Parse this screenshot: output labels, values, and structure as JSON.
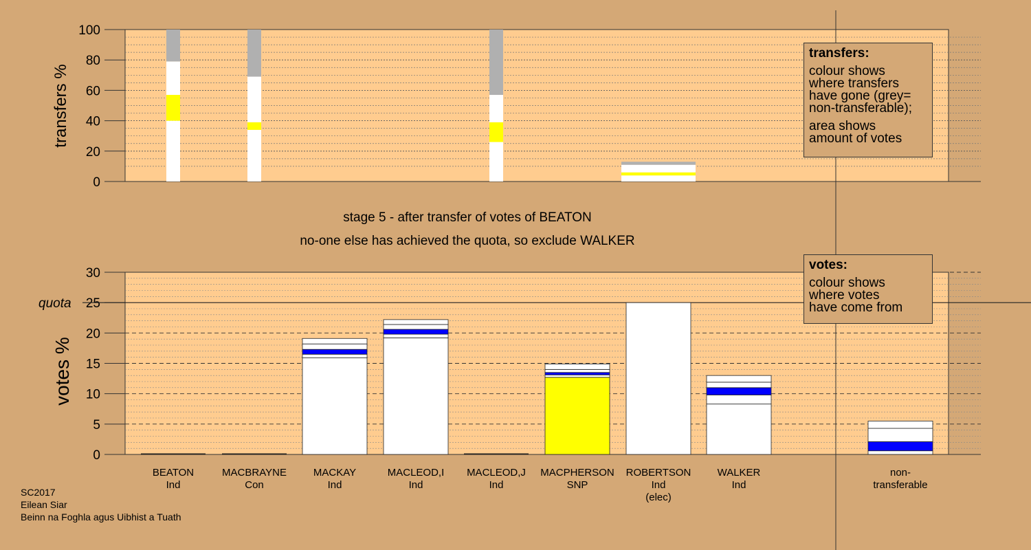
{
  "colors": {
    "background": "#d4a876",
    "panel": "#ffcc8f",
    "white": "#ffffff",
    "snp": "#ffff00",
    "ind": "#0000ff",
    "nontransferable": "#b0b0b0",
    "outline": "#333333"
  },
  "captions": {
    "stage": "stage 5 - after transfer of votes of BEATON",
    "note": "no-one else has achieved the quota, so exclude WALKER"
  },
  "source": [
    "SC2017",
    "Eilean Siar",
    "Beinn na Foghla agus Uibhist a Tuath"
  ],
  "legend_transfers": {
    "title": "transfers:",
    "lines1": [
      "colour shows",
      "where transfers",
      "have gone (grey=",
      "non-transferable);"
    ],
    "lines2": [
      "area shows",
      "amount of votes"
    ]
  },
  "legend_votes": {
    "title": "votes:",
    "lines": [
      "colour shows",
      "where votes",
      "have come from"
    ]
  },
  "chart_data": [
    {
      "type": "bar",
      "ylabel": "transfers %",
      "ylim": [
        0,
        100
      ],
      "yticks": [
        0,
        20,
        40,
        60,
        80,
        100
      ],
      "categories": [
        "BEATON",
        "MACBRAYNE",
        "MACKAY",
        "MACLEOD,I",
        "MACLEOD,J",
        "MACPHERSON",
        "ROBERTSON",
        "WALKER",
        "non-transferable"
      ],
      "columns": [
        {
          "category": "BEATON",
          "segments": [
            {
              "from": 0,
              "to": 40,
              "color": "white"
            },
            {
              "from": 40,
              "to": 57,
              "color": "snp"
            },
            {
              "from": 57,
              "to": 79,
              "color": "white"
            },
            {
              "from": 79,
              "to": 100,
              "color": "nontransferable"
            }
          ]
        },
        {
          "category": "MACBRAYNE",
          "segments": [
            {
              "from": 0,
              "to": 34,
              "color": "white"
            },
            {
              "from": 34,
              "to": 39,
              "color": "snp"
            },
            {
              "from": 39,
              "to": 69,
              "color": "white"
            },
            {
              "from": 69,
              "to": 100,
              "color": "nontransferable"
            }
          ]
        },
        {
          "category": "MACLEOD,J",
          "segments": [
            {
              "from": 0,
              "to": 26,
              "color": "white"
            },
            {
              "from": 26,
              "to": 39,
              "color": "snp"
            },
            {
              "from": 39,
              "to": 57,
              "color": "white"
            },
            {
              "from": 57,
              "to": 100,
              "color": "nontransferable"
            }
          ]
        },
        {
          "category": "ROBERTSON",
          "segments": [
            {
              "from": 0,
              "to": 4,
              "color": "white"
            },
            {
              "from": 4,
              "to": 6,
              "color": "snp"
            },
            {
              "from": 6,
              "to": 11,
              "color": "white"
            },
            {
              "from": 11,
              "to": 13,
              "color": "nontransferable"
            }
          ]
        }
      ]
    },
    {
      "type": "bar",
      "ylabel": "votes %",
      "ylim": [
        0,
        30
      ],
      "yticks": [
        0,
        5,
        10,
        15,
        20,
        25,
        30
      ],
      "quota": 25,
      "quota_label": "quota",
      "categories": [
        "BEATON",
        "MACBRAYNE",
        "MACKAY",
        "MACLEOD,I",
        "MACLEOD,J",
        "MACPHERSON",
        "ROBERTSON",
        "WALKER",
        "non-transferable"
      ],
      "category_labels": [
        [
          "BEATON",
          "Ind"
        ],
        [
          "MACBRAYNE",
          "Con"
        ],
        [
          "MACKAY",
          "Ind"
        ],
        [
          "MACLEOD,I",
          "Ind"
        ],
        [
          "MACLEOD,J",
          "Ind"
        ],
        [
          "MACPHERSON",
          "SNP"
        ],
        [
          "ROBERTSON",
          "Ind",
          "(elec)"
        ],
        [
          "WALKER",
          "Ind"
        ],
        [
          "non-",
          "transferable"
        ]
      ],
      "stacks": [
        {
          "category": "BEATON",
          "segments": []
        },
        {
          "category": "MACBRAYNE",
          "segments": []
        },
        {
          "category": "MACKAY",
          "segments": [
            {
              "from": 0,
              "to": 15.9,
              "color": "white"
            },
            {
              "from": 15.9,
              "to": 16.5,
              "color": "white"
            },
            {
              "from": 16.5,
              "to": 17.3,
              "color": "ind"
            },
            {
              "from": 17.3,
              "to": 18.2,
              "color": "white"
            },
            {
              "from": 18.2,
              "to": 19.1,
              "color": "white"
            }
          ]
        },
        {
          "category": "MACLEOD,I",
          "segments": [
            {
              "from": 0,
              "to": 19.2,
              "color": "white"
            },
            {
              "from": 19.2,
              "to": 19.8,
              "color": "white"
            },
            {
              "from": 19.8,
              "to": 20.6,
              "color": "ind"
            },
            {
              "from": 20.6,
              "to": 21.4,
              "color": "white"
            },
            {
              "from": 21.4,
              "to": 22.2,
              "color": "white"
            }
          ]
        },
        {
          "category": "MACLEOD,J",
          "segments": []
        },
        {
          "category": "MACPHERSON",
          "segments": [
            {
              "from": 0,
              "to": 12.7,
              "color": "snp"
            },
            {
              "from": 12.7,
              "to": 13.1,
              "color": "white"
            },
            {
              "from": 13.1,
              "to": 13.5,
              "color": "ind"
            },
            {
              "from": 13.5,
              "to": 14.0,
              "color": "white"
            },
            {
              "from": 14.0,
              "to": 14.9,
              "color": "white"
            }
          ]
        },
        {
          "category": "ROBERTSON",
          "segments": [
            {
              "from": 0,
              "to": 25.0,
              "color": "white"
            }
          ]
        },
        {
          "category": "WALKER",
          "segments": [
            {
              "from": 0,
              "to": 8.3,
              "color": "white"
            },
            {
              "from": 8.3,
              "to": 9.8,
              "color": "white"
            },
            {
              "from": 9.8,
              "to": 11.0,
              "color": "ind"
            },
            {
              "from": 11.0,
              "to": 11.9,
              "color": "white"
            },
            {
              "from": 11.9,
              "to": 13.0,
              "color": "white"
            }
          ]
        },
        {
          "category": "non-transferable",
          "segments": [
            {
              "from": 0,
              "to": 0.6,
              "color": "white"
            },
            {
              "from": 0.6,
              "to": 2.1,
              "color": "ind"
            },
            {
              "from": 2.1,
              "to": 4.3,
              "color": "white"
            },
            {
              "from": 4.3,
              "to": 5.5,
              "color": "white"
            }
          ]
        }
      ]
    }
  ]
}
